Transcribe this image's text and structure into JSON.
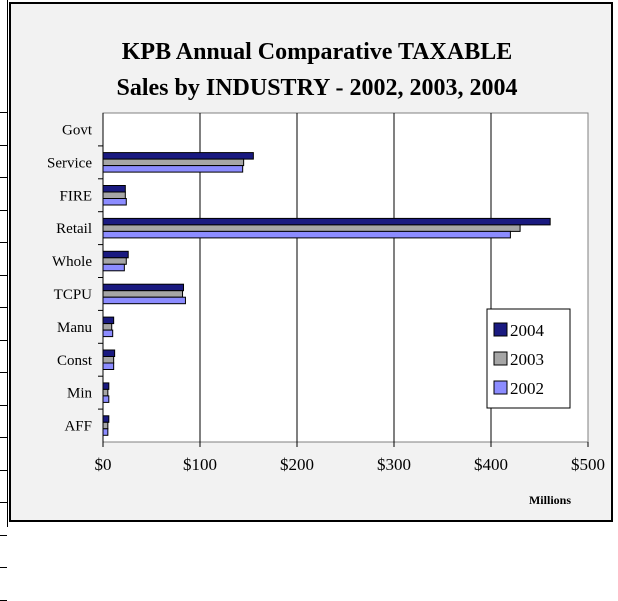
{
  "chart_data": {
    "type": "bar",
    "orientation": "horizontal",
    "title": "KPB Annual Comparative TAXABLE Sales by INDUSTRY - 2002, 2003, 2004",
    "title_lines": [
      "KPB Annual Comparative TAXABLE",
      "Sales by INDUSTRY - 2002, 2003, 2004"
    ],
    "xlabel": "Millions",
    "ylabel": "",
    "xlim": [
      0,
      500
    ],
    "x_ticks": [
      0,
      100,
      200,
      300,
      400,
      500
    ],
    "x_tick_labels": [
      "$0",
      "$100",
      "$200",
      "$300",
      "$400",
      "$500"
    ],
    "grid": "vertical",
    "legend": "right",
    "categories": [
      "Govt",
      "Service",
      "FIRE",
      "Retail",
      "Whole",
      "TCPU",
      "Manu",
      "Const",
      "Min",
      "AFF"
    ],
    "series": [
      {
        "name": "2004",
        "color": "#1a1a80",
        "values": [
          0,
          155,
          23,
          461,
          26,
          83,
          11,
          12,
          6,
          6
        ]
      },
      {
        "name": "2003",
        "color": "#a6a6a6",
        "values": [
          0,
          145,
          23,
          430,
          24,
          82,
          9,
          11,
          5,
          5
        ]
      },
      {
        "name": "2002",
        "color": "#8c8cff",
        "values": [
          0,
          144,
          24,
          420,
          22,
          85,
          10,
          11,
          6,
          5
        ]
      }
    ]
  }
}
